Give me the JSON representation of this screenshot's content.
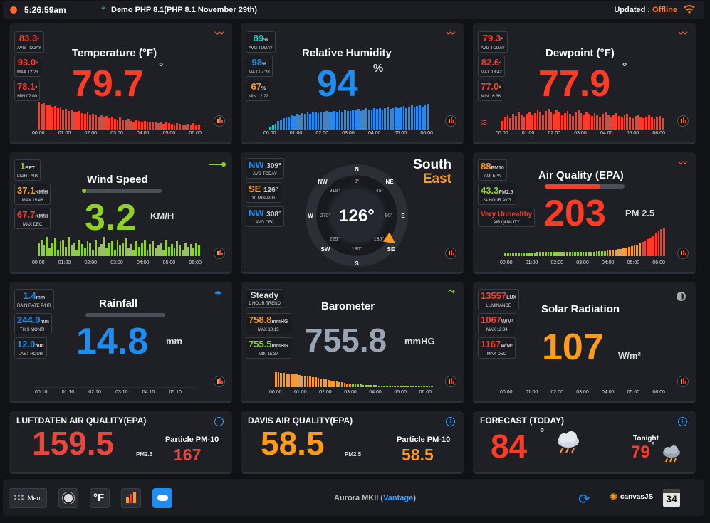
{
  "header": {
    "time": "5:26:59am",
    "station": "Demo PHP 8.1(PHP 8.1 November 29th)",
    "updated_label": "Updated :",
    "updated_status": "Offline"
  },
  "temperature": {
    "title": "Temperature (°F)",
    "value": "79.7",
    "unit": "°",
    "trend_icon": "trend-up-icon",
    "avg": {
      "value": "83.3",
      "unit": "°",
      "label": "AVG TODAY"
    },
    "max": {
      "value": "93.0",
      "unit": "°",
      "label": "MAX 12:23"
    },
    "min": {
      "value": "78.1",
      "unit": "°",
      "label": "MIN 07:00"
    },
    "ticks": [
      "00:00",
      "01:00",
      "02:00",
      "03:00",
      "04:00",
      "05:00",
      "06:00"
    ],
    "bars": [
      0.95,
      0.9,
      0.92,
      0.85,
      0.88,
      0.8,
      0.82,
      0.75,
      0.78,
      0.7,
      0.72,
      0.66,
      0.7,
      0.62,
      0.6,
      0.64,
      0.58,
      0.55,
      0.6,
      0.52,
      0.56,
      0.5,
      0.45,
      0.5,
      0.42,
      0.48,
      0.4,
      0.45,
      0.38,
      0.35,
      0.42,
      0.36,
      0.32,
      0.38,
      0.3,
      0.28,
      0.34,
      0.3,
      0.26,
      0.3,
      0.25,
      0.28,
      0.24,
      0.26,
      0.22,
      0.25,
      0.2,
      0.24,
      0.22,
      0.2,
      0.18,
      0.22,
      0.2,
      0.18,
      0.16,
      0.2,
      0.18,
      0.22,
      0.15,
      0.18
    ]
  },
  "humidity": {
    "title": "Relative Humidity",
    "value": "94",
    "unit": "%",
    "avg": {
      "value": "89",
      "unit": "%",
      "label": "AVG TODAY"
    },
    "max": {
      "value": "98",
      "unit": "%",
      "label": "MAX 07:28"
    },
    "min": {
      "value": "67",
      "unit": "%",
      "label": "MIN 12:22"
    },
    "ticks": [
      "00:00",
      "01:00",
      "02:00",
      "03:00",
      "04:00",
      "05:00",
      "06:00"
    ],
    "bars": [
      0.1,
      0.15,
      0.2,
      0.3,
      0.35,
      0.4,
      0.45,
      0.42,
      0.5,
      0.48,
      0.55,
      0.52,
      0.58,
      0.55,
      0.6,
      0.56,
      0.62,
      0.6,
      0.58,
      0.63,
      0.6,
      0.65,
      0.62,
      0.6,
      0.66,
      0.63,
      0.68,
      0.62,
      0.7,
      0.66,
      0.64,
      0.7,
      0.68,
      0.72,
      0.66,
      0.7,
      0.74,
      0.7,
      0.68,
      0.74,
      0.72,
      0.76,
      0.7,
      0.74,
      0.78,
      0.72,
      0.76,
      0.8,
      0.74,
      0.78,
      0.82,
      0.76,
      0.8,
      0.84,
      0.78,
      0.82,
      0.86,
      0.8,
      0.84,
      0.9
    ]
  },
  "dewpoint": {
    "title": "Dewpoint (°F)",
    "value": "77.9",
    "unit": "°",
    "avg": {
      "value": "79.3",
      "unit": "°",
      "label": "AVG TODAY"
    },
    "max": {
      "value": "82.6",
      "unit": "°",
      "label": "MAX 13:42"
    },
    "min": {
      "value": "77.0",
      "unit": "°",
      "label": "MIN 16:36"
    },
    "ticks": [
      "00:00",
      "01:00",
      "02:00",
      "03:00",
      "04:00",
      "05:00",
      "06:00"
    ],
    "bars": [
      0.3,
      0.45,
      0.5,
      0.4,
      0.55,
      0.48,
      0.6,
      0.5,
      0.45,
      0.55,
      0.62,
      0.5,
      0.58,
      0.7,
      0.6,
      0.52,
      0.65,
      0.72,
      0.6,
      0.55,
      0.68,
      0.6,
      0.5,
      0.58,
      0.65,
      0.55,
      0.48,
      0.6,
      0.7,
      0.58,
      0.52,
      0.62,
      0.55,
      0.48,
      0.58,
      0.5,
      0.45,
      0.55,
      0.6,
      0.5,
      0.45,
      0.52,
      0.58,
      0.48,
      0.42,
      0.5,
      0.55,
      0.45,
      0.4,
      0.48,
      0.52,
      0.44,
      0.4,
      0.46,
      0.5,
      0.42,
      0.38,
      0.44,
      0.48,
      0.4
    ]
  },
  "wind": {
    "title": "Wind Speed",
    "value": "3.2",
    "unit": "KM/H",
    "gauge": 0.05,
    "bft": {
      "value": "1",
      "unit": "BFT",
      "label": "LIGHT AIR"
    },
    "max": {
      "value": "37.1",
      "unit": "KM/H",
      "label": "MAX 15:46"
    },
    "maxdec": {
      "value": "67.7",
      "unit": "KM/H",
      "label": "MAX DEC"
    },
    "ticks": [
      "00:00",
      "01:00",
      "02:00",
      "03:00",
      "04:00",
      "05:00",
      "06:00"
    ],
    "bars": [
      0.5,
      0.6,
      0.4,
      0.7,
      0.3,
      0.5,
      0.65,
      0.2,
      0.55,
      0.6,
      0.35,
      0.7,
      0.4,
      0.5,
      0.25,
      0.6,
      0.45,
      0.3,
      0.55,
      0.5,
      0.2,
      0.6,
      0.35,
      0.45,
      0.7,
      0.3,
      0.5,
      0.55,
      0.25,
      0.6,
      0.4,
      0.5,
      0.65,
      0.3,
      0.45,
      0.2,
      0.55,
      0.35,
      0.5,
      0.6,
      0.25,
      0.45,
      0.55,
      0.3,
      0.4,
      0.5,
      0.2,
      0.6,
      0.35,
      0.45,
      0.3,
      0.55,
      0.4,
      0.25,
      0.5,
      0.35,
      0.45,
      0.3,
      0.5,
      0.4
    ]
  },
  "compass": {
    "dir1": "South",
    "dir2": "East",
    "degrees": "126°",
    "now": {
      "dir": "NW",
      "deg": "309°",
      "label": "AVG TODAY"
    },
    "avg10": {
      "dir": "SE",
      "deg": "126°",
      "label": "10 MIN AVG"
    },
    "avgdec": {
      "dir": "NW",
      "deg": "308°",
      "label": "AVG DEC"
    },
    "card_n": "N",
    "card_ne": "NE",
    "card_e": "E",
    "card_se": "SE",
    "card_s": "S",
    "card_sw": "SW",
    "card_w": "W",
    "card_nw": "NW",
    "deg_0": "0°",
    "deg_45": "45°",
    "deg_90": "90°",
    "deg_135": "135°",
    "deg_180": "180°",
    "deg_225": "225°",
    "deg_270": "270°",
    "deg_315": "315°",
    "pointer_deg": 126
  },
  "air": {
    "title": "Air Quality (EPA)",
    "value": "203",
    "unit": "PM 2.5",
    "gauge": 0.7,
    "pm10": {
      "value": "88",
      "unit": "PM10",
      "label": "AQI EPA"
    },
    "pm25": {
      "value": "43.3",
      "unit": "PM2.5",
      "label": "24 HOUR AVG"
    },
    "quality": {
      "value": "Very Unhealthy",
      "label": "AIR QUALITY"
    },
    "ticks": [
      "00:00",
      "01:00",
      "02:00",
      "03:00",
      "04:00",
      "05:00",
      "06:00"
    ],
    "bars": [
      0.1,
      0.1,
      0.1,
      0.1,
      0.12,
      0.12,
      0.12,
      0.12,
      0.12,
      0.12,
      0.12,
      0.12,
      0.14,
      0.14,
      0.14,
      0.14,
      0.14,
      0.14,
      0.14,
      0.14,
      0.15,
      0.15,
      0.15,
      0.15,
      0.15,
      0.15,
      0.15,
      0.15,
      0.16,
      0.16,
      0.16,
      0.16,
      0.16,
      0.16,
      0.18,
      0.18,
      0.18,
      0.18,
      0.2,
      0.2,
      0.22,
      0.22,
      0.25,
      0.25,
      0.28,
      0.3,
      0.32,
      0.35,
      0.38,
      0.4,
      0.45,
      0.5,
      0.55,
      0.6,
      0.65,
      0.72,
      0.8,
      0.88,
      0.95,
      1.0
    ]
  },
  "rain": {
    "title": "Rainfall",
    "value": "14.8",
    "unit": "mm",
    "gauge": 0.0,
    "rate": {
      "value": "1.4",
      "unit": "mm",
      "label": "RAIN RATE P/HR"
    },
    "month": {
      "value": "244.0",
      "unit": "mm",
      "label": "THIS MONTH"
    },
    "hour": {
      "value": "12.0",
      "unit": "mm",
      "label": "LAST HOUR"
    },
    "ticks": [
      "00:10",
      "01:10",
      "02:10",
      "03:10",
      "04:10",
      "05:10"
    ]
  },
  "baro": {
    "title": "Barometer",
    "value": "755.8",
    "unit": "mmHG",
    "trend": {
      "value": "Steady",
      "label": "1 HOUR TREND"
    },
    "max": {
      "value": "758.8",
      "unit": "mmHG",
      "label": "MAX 10:15"
    },
    "min": {
      "value": "755.5",
      "unit": "mmHG",
      "label": "MIN 15:37"
    },
    "ticks": [
      "00:00",
      "01:00",
      "02:00",
      "03:00",
      "04:00",
      "05:00",
      "06:00"
    ],
    "bars": [
      0.95,
      0.95,
      0.9,
      0.9,
      0.88,
      0.85,
      0.85,
      0.82,
      0.8,
      0.78,
      0.75,
      0.72,
      0.7,
      0.68,
      0.65,
      0.62,
      0.6,
      0.55,
      0.52,
      0.5,
      0.45,
      0.42,
      0.4,
      0.35,
      0.32,
      0.3,
      0.28,
      0.25,
      0.22,
      0.2,
      0.2,
      0.18,
      0.18,
      0.15,
      0.15,
      0.15,
      0.12,
      0.12,
      0.12,
      0.1,
      0.1,
      0.1,
      0.1,
      0.1,
      0.1,
      0.1,
      0.1,
      0.1,
      0.1,
      0.1,
      0.1,
      0.1,
      0.1,
      0.1,
      0.1,
      0.1,
      0.1,
      0.1,
      0.1,
      0.1
    ]
  },
  "solar": {
    "title": "Solar Radiation",
    "value": "107",
    "unit": "W/m²",
    "lux": {
      "value": "13557",
      "unit": "LUX",
      "label": "LUMINANCE"
    },
    "max": {
      "value": "1067",
      "unit": "W/M²",
      "label": "MAX 12:34"
    },
    "maxdec": {
      "value": "1167",
      "unit": "W/M²",
      "label": "MAX DEC"
    },
    "ticks": [
      "00:00",
      "01:00",
      "02:00",
      "03:00",
      "04:00",
      "05:00",
      "06:00"
    ]
  },
  "luftdaten": {
    "title": "LUFTDATEN AIR QUALITY(EPA)",
    "value": "159.5",
    "unit": "PM2.5",
    "pm10_label": "Particle PM-10",
    "pm10_value": "167"
  },
  "davis": {
    "title": "DAVIS AIR QUALITY(EPA)",
    "value": "58.5",
    "unit": "PM2.5",
    "pm10_label": "Particle PM-10",
    "pm10_value": "58.5"
  },
  "forecast": {
    "title": "FORECAST (TODAY)",
    "high": "84",
    "unit": "°",
    "tonight_label": "Tonight",
    "low": "79",
    "low_unit": "°"
  },
  "footer": {
    "menu_label": "Menu",
    "unit_label": "°F",
    "model": "Aurora MKII",
    "model_type": "Vantage",
    "canvas_label": "canvasJS",
    "calendar_day": "34"
  },
  "colors": {
    "red": "#ff3b26",
    "blue": "#1e8cf0",
    "orange": "#ff9b1a",
    "green": "#8fd126",
    "gray": "#9aa5b4"
  }
}
